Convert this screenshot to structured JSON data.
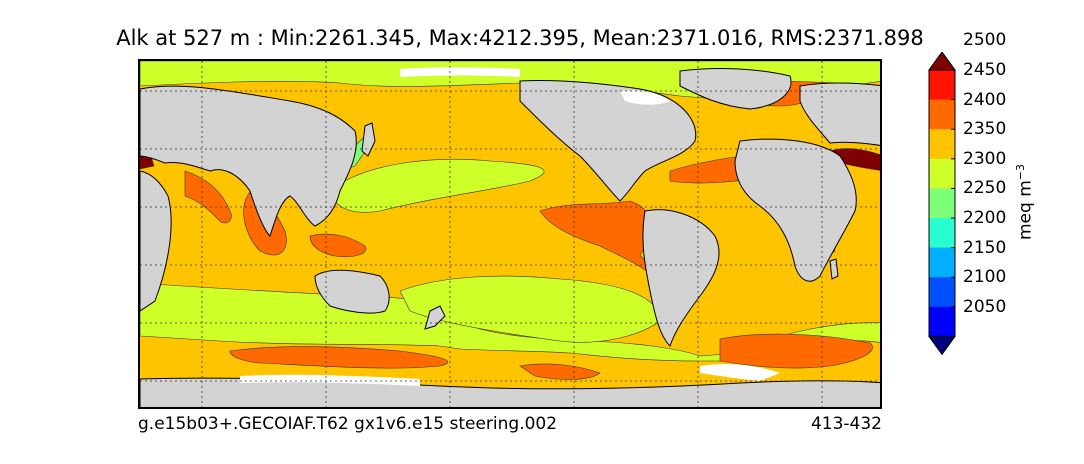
{
  "title": "Alk at 527 m : Min:2261.345, Max:4212.395, Mean:2371.016, RMS:2371.898",
  "caption_left": "g.e15b03+.GECOIAF.T62 gx1v6.e15 steering.002",
  "caption_right": "413-432",
  "colorbar": {
    "units_base": "meq m",
    "units_exp": "−3",
    "ticks": [
      "2050",
      "2100",
      "2150",
      "2200",
      "2250",
      "2300",
      "2350",
      "2400",
      "2450",
      "2500"
    ],
    "colors": [
      "#00007f",
      "#0000ff",
      "#0050ff",
      "#00b0ff",
      "#29ffce",
      "#7dff7a",
      "#ceff29",
      "#ffc400",
      "#ff6a00",
      "#ff1300",
      "#7f0000"
    ]
  },
  "map_colors": {
    "land": "#d3d3d3",
    "ice": "#ffffff",
    "c2250": "#7dff7a",
    "c2300": "#ceff29",
    "c2350": "#ffc400",
    "c2400": "#ff6a00",
    "c2500": "#7f0000"
  }
}
